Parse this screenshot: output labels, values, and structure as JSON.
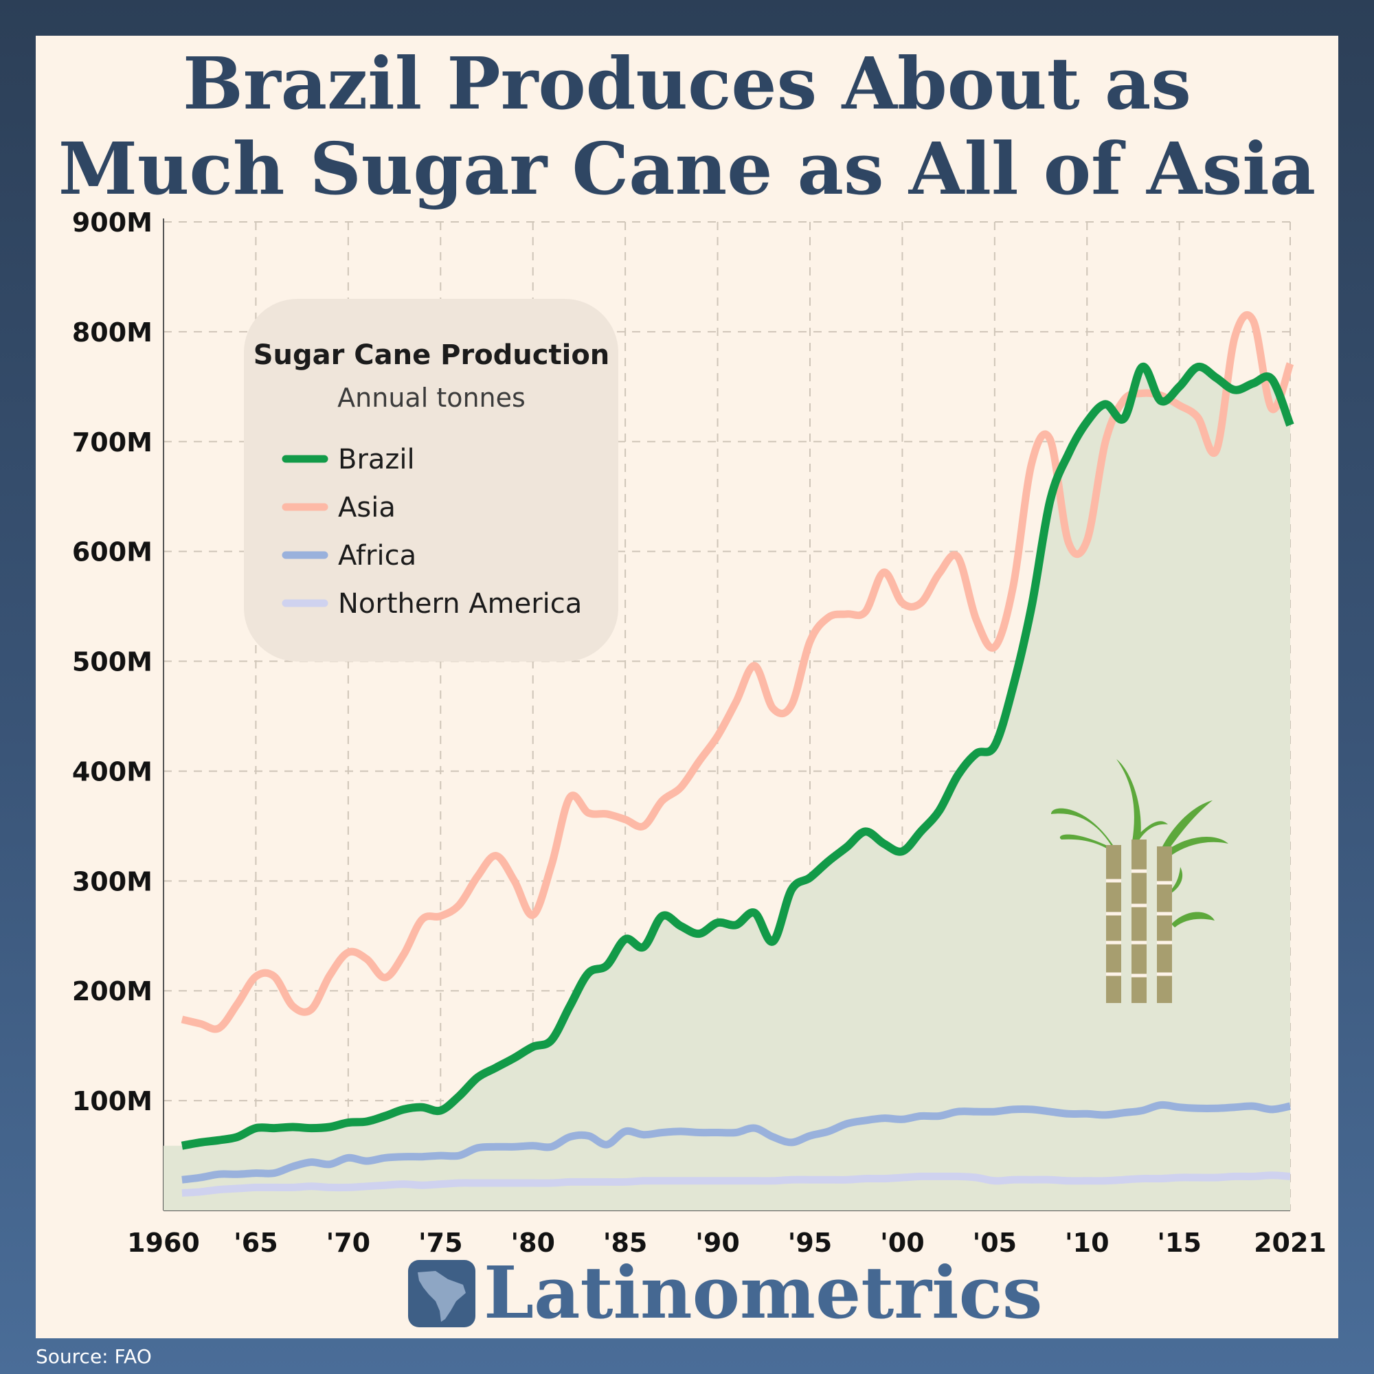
{
  "title_lines": [
    "Brazil Produces About as",
    "Much Sugar Cane as All of Asia"
  ],
  "brand": "Latinometrics",
  "source": "Source: FAO",
  "colors": {
    "brazil": "#129a48",
    "asia": "#fdb9a6",
    "africa": "#99b1dc",
    "northern_america": "#cfd2ef",
    "area_fill": "#e2e6d4",
    "grid": "#cfc5b8",
    "title": "#2f4663"
  },
  "chart_data": {
    "type": "line",
    "title": "Sugar Cane Production",
    "subtitle": "Annual tonnes",
    "xlabel": "",
    "ylabel": "",
    "xlim": [
      1960,
      2021
    ],
    "ylim": [
      0,
      900000000
    ],
    "grid": true,
    "legend_position": "top-left",
    "ytick_labels": [
      "100M",
      "200M",
      "300M",
      "400M",
      "500M",
      "600M",
      "700M",
      "800M",
      "900M"
    ],
    "xtick_labels": [
      "1960",
      "'65",
      "'70",
      "'75",
      "'80",
      "'85",
      "'90",
      "'95",
      "'00",
      "'05",
      "'10",
      "'15",
      "2021"
    ],
    "x": [
      1961,
      1962,
      1963,
      1964,
      1965,
      1966,
      1967,
      1968,
      1969,
      1970,
      1971,
      1972,
      1973,
      1974,
      1975,
      1976,
      1977,
      1978,
      1979,
      1980,
      1981,
      1982,
      1983,
      1984,
      1985,
      1986,
      1987,
      1988,
      1989,
      1990,
      1991,
      1992,
      1993,
      1994,
      1995,
      1996,
      1997,
      1998,
      1999,
      2000,
      2001,
      2002,
      2003,
      2004,
      2005,
      2006,
      2007,
      2008,
      2009,
      2010,
      2011,
      2012,
      2013,
      2014,
      2015,
      2016,
      2017,
      2018,
      2019,
      2020,
      2021
    ],
    "series": [
      {
        "name": "Brazil",
        "values": [
          59,
          62,
          64,
          67,
          75,
          75,
          76,
          75,
          76,
          80,
          81,
          86,
          92,
          94,
          91,
          104,
          121,
          130,
          139,
          149,
          155,
          186,
          216,
          223,
          247,
          240,
          268,
          259,
          252,
          262,
          260,
          271,
          245,
          292,
          303,
          318,
          331,
          345,
          334,
          327,
          345,
          364,
          396,
          416,
          423,
          477,
          550,
          646,
          689,
          718,
          734,
          721,
          768,
          737,
          750,
          768,
          758,
          747,
          753,
          757,
          715
        ]
      },
      {
        "name": "Asia",
        "values": [
          174,
          170,
          166,
          188,
          213,
          213,
          186,
          183,
          214,
          235,
          229,
          212,
          233,
          265,
          268,
          278,
          304,
          323,
          300,
          269,
          314,
          376,
          362,
          361,
          356,
          350,
          373,
          385,
          409,
          432,
          463,
          496,
          457,
          460,
          518,
          540,
          543,
          545,
          581,
          553,
          553,
          580,
          595,
          538,
          513,
          568,
          680,
          702,
          608,
          610,
          700,
          738,
          744,
          742,
          733,
          722,
          692,
          795,
          810,
          730,
          771
        ]
      },
      {
        "name": "Africa",
        "values": [
          28,
          30,
          33,
          33,
          34,
          34,
          40,
          44,
          42,
          48,
          45,
          48,
          49,
          49,
          50,
          50,
          57,
          58,
          58,
          59,
          58,
          67,
          68,
          60,
          72,
          69,
          71,
          72,
          71,
          71,
          71,
          75,
          67,
          62,
          68,
          72,
          79,
          82,
          84,
          83,
          86,
          86,
          90,
          90,
          90,
          92,
          92,
          90,
          88,
          88,
          87,
          89,
          91,
          96,
          94,
          93,
          93,
          94,
          95,
          92,
          95
        ]
      },
      {
        "name": "Northern America",
        "values": [
          16,
          17,
          19,
          20,
          21,
          21,
          21,
          22,
          21,
          21,
          22,
          23,
          24,
          23,
          24,
          25,
          25,
          25,
          25,
          25,
          25,
          26,
          26,
          26,
          26,
          27,
          27,
          27,
          27,
          27,
          27,
          27,
          27,
          28,
          28,
          28,
          28,
          29,
          29,
          30,
          31,
          31,
          31,
          30,
          27,
          28,
          28,
          28,
          27,
          27,
          27,
          28,
          29,
          29,
          30,
          30,
          30,
          31,
          31,
          32,
          31
        ]
      }
    ],
    "value_unit": "million tonnes"
  }
}
